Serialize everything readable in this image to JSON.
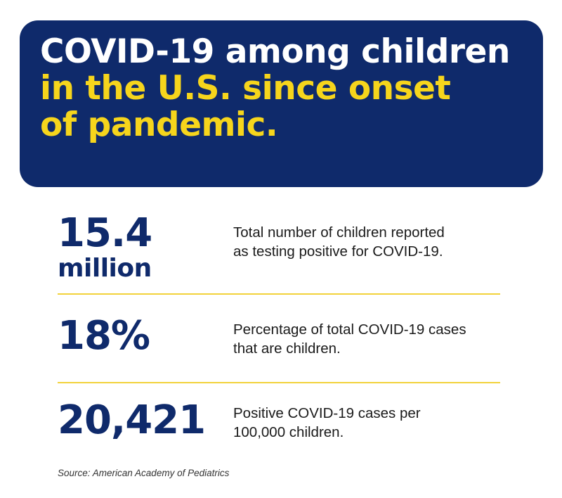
{
  "header": {
    "title_line1": "COVID-19 among children",
    "title_line2": "in the U.S. since onset",
    "title_line3": "of pandemic.",
    "colors": {
      "panel": "#0f2a6b",
      "accent": "#f6d51c",
      "text": "#ffffff"
    }
  },
  "stats": [
    {
      "value": "15.4",
      "unit": "million",
      "description_line1": "Total number of children reported",
      "description_line2": "as testing positive for COVID-19."
    },
    {
      "value": "18%",
      "description_line1": "Percentage of total COVID-19 cases",
      "description_line2": "that are children."
    },
    {
      "value": "20,421",
      "description_line1": "Positive COVID-19 cases per",
      "description_line2": "100,000 children."
    }
  ],
  "footer": {
    "source": "Source: American Academy of Pediatrics"
  },
  "colors": {
    "stat_value": "#0f2a6b",
    "divider": "#f2d23a"
  }
}
